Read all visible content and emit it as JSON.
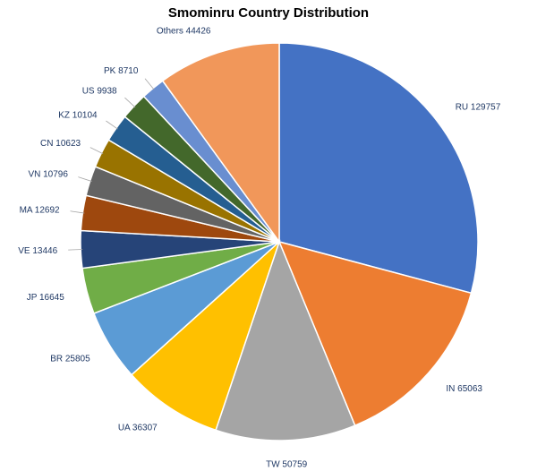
{
  "chart_data": {
    "type": "pie",
    "title": "Smominru Country Distribution",
    "slices": [
      {
        "label": "RU",
        "value": 129757,
        "color": "#4472c4"
      },
      {
        "label": "IN",
        "value": 65063,
        "color": "#ed7d31"
      },
      {
        "label": "TW",
        "value": 50759,
        "color": "#a5a5a5"
      },
      {
        "label": "UA",
        "value": 36307,
        "color": "#ffc000"
      },
      {
        "label": "BR",
        "value": 25805,
        "color": "#5b9bd5"
      },
      {
        "label": "JP",
        "value": 16645,
        "color": "#70ad47"
      },
      {
        "label": "VE",
        "value": 13446,
        "color": "#264478"
      },
      {
        "label": "MA",
        "value": 12692,
        "color": "#9e480e"
      },
      {
        "label": "VN",
        "value": 10796,
        "color": "#636363"
      },
      {
        "label": "CN",
        "value": 10623,
        "color": "#997300"
      },
      {
        "label": "KZ",
        "value": 10104,
        "color": "#255e91"
      },
      {
        "label": "US",
        "value": 9938,
        "color": "#43682b"
      },
      {
        "label": "PK",
        "value": 8710,
        "color": "#698ed0"
      },
      {
        "label": "Others",
        "value": 44426,
        "color": "#f1975a"
      }
    ],
    "legend": "none",
    "label_color": "#1f3864"
  }
}
